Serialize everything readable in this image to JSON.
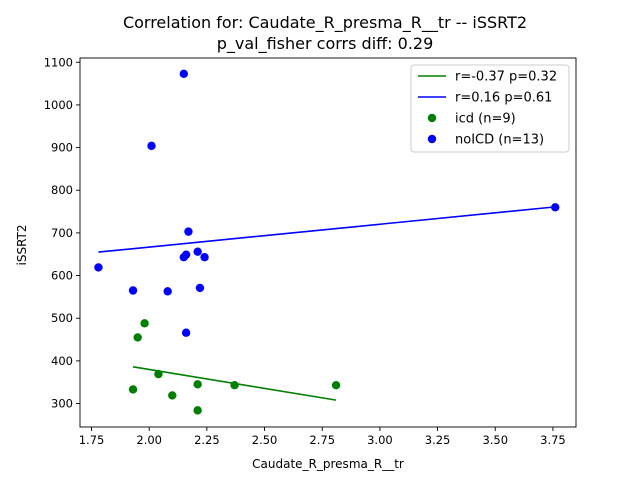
{
  "chart_data": {
    "type": "scatter",
    "title": "Correlation for: Caudate_R_presma_R__tr -- iSSRT2",
    "subtitle": "p_val_fisher corrs diff: 0.29",
    "xlabel": "Caudate_R_presma_R__tr",
    "ylabel": "iSSRT2",
    "xlim": [
      1.7,
      3.85
    ],
    "ylim": [
      245,
      1110
    ],
    "xticks": [
      1.75,
      2.0,
      2.25,
      2.5,
      2.75,
      3.0,
      3.25,
      3.5,
      3.75
    ],
    "xtick_labels": [
      "1.75",
      "2.00",
      "2.25",
      "2.50",
      "2.75",
      "3.00",
      "3.25",
      "3.50",
      "3.75"
    ],
    "yticks": [
      300,
      400,
      500,
      600,
      700,
      800,
      900,
      1000,
      1100
    ],
    "ytick_labels": [
      "300",
      "400",
      "500",
      "600",
      "700",
      "800",
      "900",
      "1000",
      "1100"
    ],
    "grid": false,
    "legend_position": "top-right",
    "series": [
      {
        "name": "icd (n=9)",
        "color": "#008000",
        "points": [
          [
            1.93,
            333
          ],
          [
            1.95,
            455
          ],
          [
            1.98,
            488
          ],
          [
            2.04,
            369
          ],
          [
            2.1,
            319
          ],
          [
            2.21,
            345
          ],
          [
            2.21,
            284
          ],
          [
            2.37,
            343
          ],
          [
            2.81,
            343
          ]
        ],
        "fit": {
          "label": "r=-0.37 p=0.32",
          "x": [
            1.93,
            2.81
          ],
          "y": [
            386,
            308
          ]
        }
      },
      {
        "name": "noICD (n=13)",
        "color": "#0000ff",
        "points": [
          [
            1.78,
            619
          ],
          [
            1.93,
            565
          ],
          [
            2.01,
            904
          ],
          [
            2.08,
            563
          ],
          [
            2.15,
            1073
          ],
          [
            2.15,
            643
          ],
          [
            2.16,
            649
          ],
          [
            2.16,
            466
          ],
          [
            2.17,
            703
          ],
          [
            2.21,
            656
          ],
          [
            2.22,
            571
          ],
          [
            2.24,
            643
          ],
          [
            3.76,
            760
          ]
        ],
        "fit": {
          "label": "r=0.16 p=0.61",
          "x": [
            1.78,
            3.76
          ],
          "y": [
            655,
            761
          ]
        }
      }
    ]
  }
}
